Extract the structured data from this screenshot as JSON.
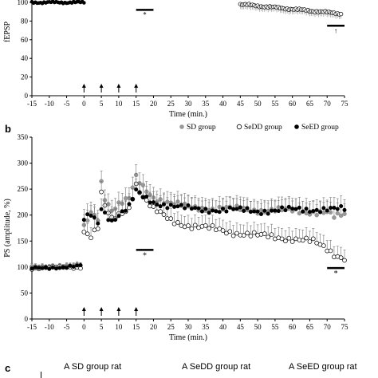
{
  "chart_data": [
    {
      "type": "scatter",
      "panel_label": "",
      "ylabel": "fEPSP",
      "xlabel": "Time (min.)",
      "xlim": [
        -15,
        75
      ],
      "x_ticks": [
        -15,
        -10,
        -5,
        0,
        5,
        10,
        15,
        20,
        25,
        30,
        35,
        40,
        45,
        50,
        55,
        60,
        65,
        70,
        75
      ],
      "x_tick_labels": [
        "-15",
        "-10",
        "-5",
        "0",
        "5",
        "10",
        "15",
        "20",
        "25",
        "30",
        "35",
        "40",
        "45",
        "50",
        "55",
        "60",
        "65",
        "70",
        "75"
      ],
      "y_ticks": [
        0,
        20,
        40,
        60,
        80,
        100
      ],
      "y_tick_labels": [
        "0",
        "20",
        "40",
        "60",
        "80",
        "100"
      ],
      "visible_ylim": [
        0,
        102
      ],
      "hfs_arrows_at": [
        0,
        5,
        10,
        15
      ],
      "bars": [
        {
          "x_start": 15,
          "x_end": 20,
          "y": 92,
          "marker": "*"
        },
        {
          "x_start": 70,
          "x_end": 75,
          "y": 75,
          "marker": "↑"
        }
      ],
      "series": [
        {
          "name": "",
          "marker": "filled",
          "color": "#000000",
          "x_range": [
            -15,
            0
          ],
          "y": 100
        },
        {
          "name": "",
          "marker": "open",
          "color": "#000000",
          "x_range": [
            45,
            74
          ],
          "y_start": 98,
          "y_end": 88
        }
      ]
    },
    {
      "type": "scatter",
      "panel_label": "b",
      "ylabel": "PS (amplitude, %)",
      "xlabel": "Time (min.)",
      "xlim": [
        -15,
        75
      ],
      "ylim": [
        0,
        350
      ],
      "x_ticks": [
        -15,
        -10,
        -5,
        0,
        5,
        10,
        15,
        20,
        25,
        30,
        35,
        40,
        45,
        50,
        55,
        60,
        65,
        70,
        75
      ],
      "x_tick_labels": [
        "-15",
        "-10",
        "-5",
        "0",
        "5",
        "10",
        "15",
        "20",
        "25",
        "30",
        "35",
        "40",
        "45",
        "50",
        "55",
        "60",
        "65",
        "70",
        "75"
      ],
      "y_ticks": [
        0,
        50,
        100,
        150,
        200,
        250,
        300,
        350
      ],
      "y_tick_labels": [
        "0",
        "50",
        "100",
        "150",
        "200",
        "250",
        "300",
        "350"
      ],
      "hfs_arrows_at": [
        0,
        5,
        10,
        15
      ],
      "legend": {
        "position": "top-right"
      },
      "bars": [
        {
          "x_start": 15,
          "x_end": 20,
          "y": 133,
          "marker": "*"
        },
        {
          "x_start": 70,
          "x_end": 75,
          "y": 98,
          "marker": "*"
        }
      ],
      "series": [
        {
          "name": "SD group",
          "marker": "filled",
          "color": "#999999",
          "keypoints": [
            [
              -15,
              100
            ],
            [
              -0.5,
              103
            ],
            [
              0,
              175
            ],
            [
              2,
              205
            ],
            [
              4,
              195
            ],
            [
              5,
              265
            ],
            [
              6,
              235
            ],
            [
              8,
              210
            ],
            [
              10,
              220
            ],
            [
              13,
              230
            ],
            [
              15,
              272
            ],
            [
              17,
              255
            ],
            [
              20,
              235
            ],
            [
              25,
              222
            ],
            [
              30,
              215
            ],
            [
              40,
              212
            ],
            [
              50,
              210
            ],
            [
              60,
              208
            ],
            [
              70,
              205
            ],
            [
              72,
              195
            ],
            [
              75,
              200
            ]
          ]
        },
        {
          "name": "SeDD group",
          "marker": "open",
          "color": "#000000",
          "keypoints": [
            [
              -15,
              98
            ],
            [
              -0.5,
              100
            ],
            [
              0,
              170
            ],
            [
              2,
              160
            ],
            [
              4,
              175
            ],
            [
              5,
              240
            ],
            [
              6,
              215
            ],
            [
              8,
              190
            ],
            [
              10,
              200
            ],
            [
              13,
              215
            ],
            [
              15,
              260
            ],
            [
              17,
              235
            ],
            [
              20,
              210
            ],
            [
              25,
              190
            ],
            [
              30,
              180
            ],
            [
              40,
              170
            ],
            [
              50,
              160
            ],
            [
              60,
              155
            ],
            [
              66,
              148
            ],
            [
              70,
              135
            ],
            [
              72,
              125
            ],
            [
              75,
              118
            ]
          ]
        },
        {
          "name": "SeED group",
          "marker": "filled",
          "color": "#000000",
          "keypoints": [
            [
              -15,
              97
            ],
            [
              -0.5,
              102
            ],
            [
              0,
              190
            ],
            [
              2,
              200
            ],
            [
              4,
              185
            ],
            [
              5,
              215
            ],
            [
              6,
              205
            ],
            [
              8,
              190
            ],
            [
              10,
              200
            ],
            [
              13,
              215
            ],
            [
              15,
              245
            ],
            [
              17,
              235
            ],
            [
              20,
              225
            ],
            [
              25,
              218
            ],
            [
              30,
              212
            ],
            [
              40,
              210
            ],
            [
              50,
              208
            ],
            [
              60,
              210
            ],
            [
              70,
              212
            ],
            [
              75,
              210
            ]
          ]
        }
      ]
    }
  ],
  "panel_c": {
    "label": "c",
    "titles": [
      "A SD group rat",
      "A SeDD group rat",
      "A SeED group rat"
    ]
  }
}
